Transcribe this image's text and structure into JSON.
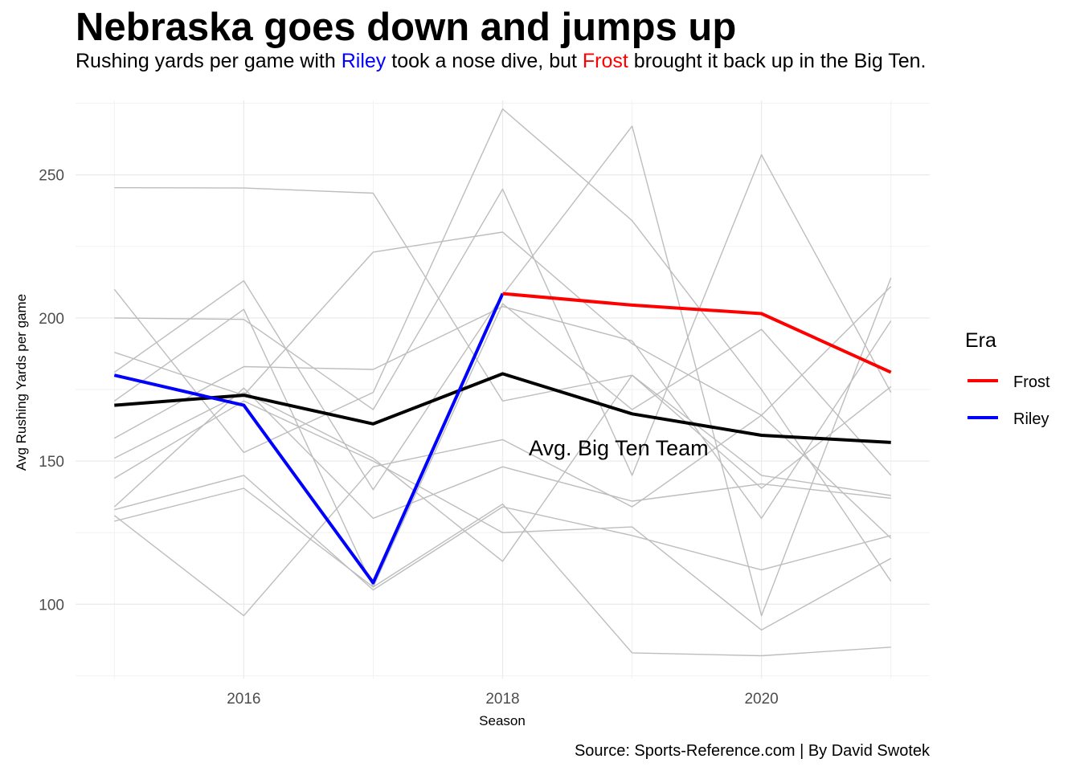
{
  "chart_data": {
    "type": "line",
    "title": "Nebraska goes down and jumps up",
    "subtitle": {
      "before": "Rushing yards per game with ",
      "riley": "Riley",
      "middle": " took a nose dive, but ",
      "frost": "Frost",
      "after": " brought it back up in the Big Ten."
    },
    "xlabel": "Season",
    "ylabel": "Avg Rushing Yards per game",
    "caption": "Source: Sports-Reference.com | By David Swotek",
    "annotation": "Avg. Big Ten Team",
    "x_ticks": [
      "2016",
      "2018",
      "2020"
    ],
    "y_ticks": [
      "100",
      "150",
      "200",
      "250"
    ],
    "xlim": [
      2014.7,
      2021.3
    ],
    "ylim": [
      74,
      276
    ],
    "grid": true,
    "legend": {
      "title": "Era",
      "position": "right",
      "entries": [
        {
          "label": "Frost",
          "color": "#ff0000"
        },
        {
          "label": "Riley",
          "color": "#0000ff"
        }
      ]
    },
    "colors": {
      "teams": "#bdbdbd",
      "average": "#000000",
      "frost": "#ff0000",
      "riley": "#0000ff"
    },
    "x": [
      2015,
      2016,
      2017,
      2018,
      2019,
      2020,
      2021
    ],
    "team_series": [
      [
        245.5,
        245.4,
        243.6,
        171.0,
        180.0,
        140.5,
        176.0
      ],
      [
        210.0,
        153.0,
        174.0,
        273.0,
        234.0,
        175.0,
        108.0
      ],
      [
        200.0,
        199.5,
        168.0,
        245.0,
        145.0,
        257.0,
        174.0
      ],
      [
        188.0,
        173.0,
        223.0,
        230.0,
        191.0,
        166.0,
        123.0
      ],
      [
        181.0,
        213.0,
        140.0,
        208.0,
        267.0,
        96.0,
        214.0
      ],
      [
        171.0,
        203.0,
        106.0,
        205.0,
        168.0,
        196.0,
        145.0
      ],
      [
        158.0,
        183.0,
        182.0,
        204.0,
        192.0,
        130.0,
        199.0
      ],
      [
        151.0,
        174.0,
        151.0,
        115.0,
        180.0,
        145.0,
        138.0
      ],
      [
        144.0,
        171.0,
        150.0,
        125.0,
        127.0,
        91.0,
        116.0
      ],
      [
        134.0,
        175.5,
        130.0,
        148.0,
        136.0,
        142.0,
        137.0
      ],
      [
        131.0,
        96.0,
        148.0,
        157.5,
        134.0,
        166.0,
        211.0
      ],
      [
        129.0,
        140.5,
        106.0,
        135.0,
        83.0,
        82.0,
        85.0
      ],
      [
        133.0,
        145.0,
        105.0,
        134.0,
        124.0,
        112.0,
        124.0
      ]
    ],
    "series": [
      {
        "name": "Avg. Big Ten Team",
        "color": "#000000",
        "x": [
          2015,
          2016,
          2017,
          2018,
          2019,
          2020,
          2021
        ],
        "values": [
          169.5,
          173.0,
          163.0,
          180.5,
          166.5,
          159.0,
          156.5
        ]
      },
      {
        "name": "Riley",
        "color": "#0000ff",
        "x": [
          2015,
          2016,
          2017,
          2018
        ],
        "values": [
          180.0,
          169.5,
          107.5,
          208.5
        ]
      },
      {
        "name": "Frost",
        "color": "#ff0000",
        "x": [
          2018,
          2019,
          2020,
          2021
        ],
        "values": [
          208.5,
          204.5,
          201.5,
          181.0
        ]
      }
    ]
  }
}
